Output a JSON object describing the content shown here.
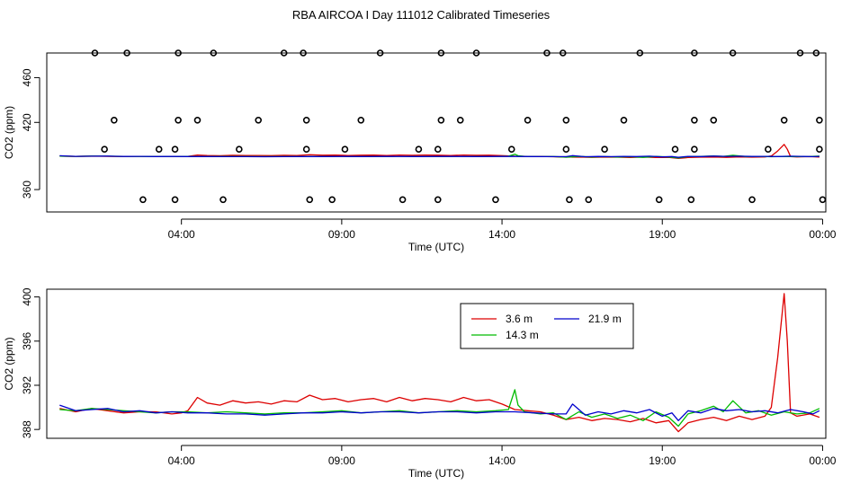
{
  "title": "RBA AIRCOA I  Day 111012  Calibrated Timeseries",
  "colors": {
    "h3_6": "#dd0000",
    "h14_3": "#00bb00",
    "h21_9": "#0000cc",
    "axis": "#000000"
  },
  "chart_data": [
    {
      "type": "line",
      "title": "",
      "xlabel": "Time (UTC)",
      "ylabel": "CO2 (ppm)",
      "xlim": [
        -0.2,
        24.1
      ],
      "ylim": [
        340,
        482
      ],
      "xticks": [
        4,
        9,
        14,
        19,
        24
      ],
      "xtick_labels": [
        "04:00",
        "09:00",
        "14:00",
        "19:00",
        "00:00"
      ],
      "yticks": [
        360,
        420,
        460
      ],
      "ytick_labels": [
        "360",
        "420",
        "460"
      ],
      "calibration_points": [
        {
          "t": 1.3,
          "v": 482
        },
        {
          "t": 1.6,
          "v": 396
        },
        {
          "t": 1.9,
          "v": 422
        },
        {
          "t": 2.3,
          "v": 482
        },
        {
          "t": 2.8,
          "v": 351
        },
        {
          "t": 3.3,
          "v": 396
        },
        {
          "t": 3.8,
          "v": 351
        },
        {
          "t": 3.8,
          "v": 396
        },
        {
          "t": 3.9,
          "v": 422
        },
        {
          "t": 3.9,
          "v": 482
        },
        {
          "t": 4.5,
          "v": 422
        },
        {
          "t": 5.0,
          "v": 482
        },
        {
          "t": 5.3,
          "v": 351
        },
        {
          "t": 5.8,
          "v": 396
        },
        {
          "t": 6.4,
          "v": 422
        },
        {
          "t": 7.2,
          "v": 482
        },
        {
          "t": 7.8,
          "v": 482
        },
        {
          "t": 7.9,
          "v": 422
        },
        {
          "t": 7.9,
          "v": 396
        },
        {
          "t": 8.0,
          "v": 351
        },
        {
          "t": 8.7,
          "v": 351
        },
        {
          "t": 9.1,
          "v": 396
        },
        {
          "t": 9.6,
          "v": 422
        },
        {
          "t": 10.2,
          "v": 482
        },
        {
          "t": 10.9,
          "v": 351
        },
        {
          "t": 11.4,
          "v": 396
        },
        {
          "t": 12.0,
          "v": 351
        },
        {
          "t": 12.0,
          "v": 396
        },
        {
          "t": 12.1,
          "v": 422
        },
        {
          "t": 12.1,
          "v": 482
        },
        {
          "t": 12.7,
          "v": 422
        },
        {
          "t": 13.2,
          "v": 482
        },
        {
          "t": 13.8,
          "v": 351
        },
        {
          "t": 14.3,
          "v": 396
        },
        {
          "t": 14.8,
          "v": 422
        },
        {
          "t": 15.4,
          "v": 482
        },
        {
          "t": 15.9,
          "v": 482
        },
        {
          "t": 16.0,
          "v": 422
        },
        {
          "t": 16.0,
          "v": 396
        },
        {
          "t": 16.1,
          "v": 351
        },
        {
          "t": 16.7,
          "v": 351
        },
        {
          "t": 17.2,
          "v": 396
        },
        {
          "t": 17.8,
          "v": 422
        },
        {
          "t": 18.3,
          "v": 482
        },
        {
          "t": 18.9,
          "v": 351
        },
        {
          "t": 19.4,
          "v": 396
        },
        {
          "t": 19.9,
          "v": 351
        },
        {
          "t": 20.0,
          "v": 396
        },
        {
          "t": 20.0,
          "v": 422
        },
        {
          "t": 20.0,
          "v": 482
        },
        {
          "t": 20.6,
          "v": 422
        },
        {
          "t": 21.2,
          "v": 482
        },
        {
          "t": 21.8,
          "v": 351
        },
        {
          "t": 22.3,
          "v": 396
        },
        {
          "t": 22.8,
          "v": 422
        },
        {
          "t": 23.3,
          "v": 482
        },
        {
          "t": 23.8,
          "v": 482
        },
        {
          "t": 23.9,
          "v": 422
        },
        {
          "t": 23.9,
          "v": 396
        },
        {
          "t": 24.0,
          "v": 351
        }
      ],
      "series_ref": "shared_series"
    },
    {
      "type": "line",
      "title": "",
      "xlabel": "Time (UTC)",
      "ylabel": "CO2 (ppm)",
      "xlim": [
        -0.2,
        24.1
      ],
      "ylim": [
        387.2,
        400.7
      ],
      "xticks": [
        4,
        9,
        14,
        19,
        24
      ],
      "xtick_labels": [
        "04:00",
        "09:00",
        "14:00",
        "19:00",
        "00:00"
      ],
      "yticks": [
        388,
        392,
        396,
        400
      ],
      "ytick_labels": [
        "388",
        "392",
        "396",
        "400"
      ],
      "legend": {
        "placement": "top-center",
        "entries": [
          {
            "label": "3.6 m",
            "series": "h3_6"
          },
          {
            "label": "21.9 m",
            "series": "h21_9"
          },
          {
            "label": "14.3 m",
            "series": "h14_3"
          }
        ]
      },
      "series_ref": "shared_series"
    }
  ],
  "shared_series": {
    "h3_6": {
      "name": "3.6 m",
      "t": [
        0.2,
        0.7,
        1.2,
        1.7,
        2.2,
        2.7,
        3.2,
        3.7,
        4.0,
        4.2,
        4.5,
        4.8,
        5.2,
        5.6,
        6.0,
        6.4,
        6.8,
        7.2,
        7.6,
        8.0,
        8.4,
        8.8,
        9.2,
        9.6,
        10.0,
        10.4,
        10.8,
        11.2,
        11.6,
        12.0,
        12.4,
        12.8,
        13.2,
        13.6,
        14.0,
        14.4,
        14.8,
        15.2,
        15.6,
        16.0,
        16.4,
        16.8,
        17.2,
        17.6,
        18.0,
        18.4,
        18.8,
        19.2,
        19.5,
        19.8,
        20.2,
        20.6,
        21.0,
        21.4,
        21.8,
        22.2,
        22.4,
        22.6,
        22.8,
        22.9,
        23.0,
        23.2,
        23.6,
        23.9
      ],
      "v": [
        389.9,
        389.6,
        389.9,
        389.7,
        389.5,
        389.6,
        389.6,
        389.4,
        389.5,
        389.7,
        390.9,
        390.4,
        390.2,
        390.6,
        390.4,
        390.5,
        390.3,
        390.6,
        390.5,
        391.1,
        390.7,
        390.8,
        390.5,
        390.7,
        390.8,
        390.5,
        390.9,
        390.6,
        390.8,
        390.7,
        390.5,
        390.9,
        390.6,
        390.7,
        390.3,
        389.8,
        389.7,
        389.6,
        389.3,
        388.9,
        389.1,
        388.8,
        389.0,
        388.9,
        388.7,
        389.0,
        388.6,
        388.8,
        387.8,
        388.6,
        388.9,
        389.1,
        388.8,
        389.2,
        388.9,
        389.2,
        390.0,
        394.5,
        400.3,
        396.0,
        389.5,
        389.2,
        389.4,
        389.1
      ]
    },
    "h14_3": {
      "name": "14.3 m",
      "t": [
        0.2,
        0.7,
        1.2,
        1.7,
        2.2,
        2.7,
        3.2,
        3.7,
        4.2,
        4.8,
        5.4,
        6.0,
        6.6,
        7.2,
        7.8,
        8.4,
        9.0,
        9.6,
        10.2,
        10.8,
        11.4,
        12.0,
        12.6,
        13.2,
        13.8,
        14.2,
        14.4,
        14.5,
        14.7,
        15.2,
        15.6,
        16.0,
        16.4,
        16.8,
        17.2,
        17.6,
        18.0,
        18.4,
        18.8,
        19.2,
        19.5,
        19.8,
        20.2,
        20.6,
        20.9,
        21.2,
        21.6,
        22.0,
        22.4,
        22.8,
        23.2,
        23.6,
        23.9
      ],
      "v": [
        389.8,
        389.7,
        389.9,
        389.8,
        389.7,
        389.6,
        389.5,
        389.6,
        389.6,
        389.5,
        389.6,
        389.5,
        389.4,
        389.5,
        389.5,
        389.6,
        389.7,
        389.5,
        389.6,
        389.7,
        389.5,
        389.6,
        389.7,
        389.6,
        389.7,
        389.8,
        391.6,
        390.2,
        389.6,
        389.4,
        389.5,
        388.9,
        389.6,
        389.1,
        389.4,
        389.0,
        389.3,
        388.8,
        389.6,
        389.1,
        388.3,
        389.4,
        389.7,
        390.1,
        389.6,
        390.6,
        389.5,
        389.7,
        389.3,
        389.6,
        389.4,
        389.5,
        389.9
      ]
    },
    "h21_9": {
      "name": "21.9 m",
      "t": [
        0.2,
        0.7,
        1.2,
        1.7,
        2.2,
        2.7,
        3.2,
        3.7,
        4.2,
        4.8,
        5.4,
        6.0,
        6.6,
        7.2,
        7.8,
        8.4,
        9.0,
        9.6,
        10.2,
        10.8,
        11.4,
        12.0,
        12.6,
        13.2,
        13.8,
        14.4,
        15.0,
        15.6,
        16.0,
        16.2,
        16.6,
        17.0,
        17.4,
        17.8,
        18.2,
        18.6,
        19.0,
        19.3,
        19.5,
        19.8,
        20.2,
        20.6,
        21.0,
        21.4,
        21.8,
        22.2,
        22.6,
        23.0,
        23.4,
        23.7,
        23.9
      ],
      "v": [
        390.2,
        389.7,
        389.8,
        389.9,
        389.6,
        389.7,
        389.5,
        389.6,
        389.5,
        389.5,
        389.4,
        389.4,
        389.3,
        389.4,
        389.5,
        389.5,
        389.6,
        389.5,
        389.6,
        389.6,
        389.5,
        389.6,
        389.6,
        389.5,
        389.6,
        389.6,
        389.5,
        389.4,
        389.4,
        390.3,
        389.3,
        389.6,
        389.4,
        389.7,
        389.5,
        389.8,
        389.2,
        389.5,
        388.8,
        389.7,
        389.5,
        389.9,
        389.7,
        389.8,
        389.6,
        389.7,
        389.5,
        389.8,
        389.6,
        389.4,
        389.7
      ]
    }
  }
}
